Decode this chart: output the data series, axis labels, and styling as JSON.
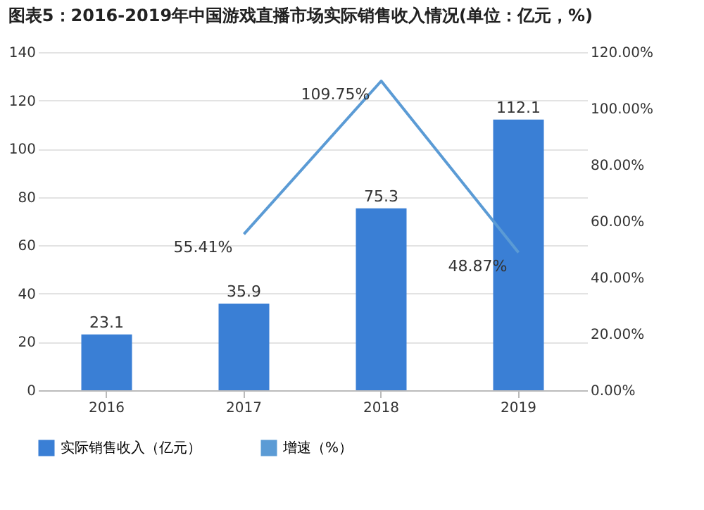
{
  "chart_data": {
    "type": "bar",
    "title": "图表5：2016-2019年中国游戏直播市场实际销售收入情况(单位：亿元，%)",
    "categories": [
      "2016",
      "2017",
      "2018",
      "2019"
    ],
    "series": [
      {
        "name": "实际销售收入（亿元）",
        "color": "#3a7fd5",
        "values": [
          23.1,
          35.9,
          75.3,
          112.1
        ],
        "value_labels": [
          "23.1",
          "35.9",
          "75.3",
          "112.1"
        ]
      },
      {
        "name": "增速（%）",
        "type": "line",
        "axis": "y2",
        "color": "#5b9bd5",
        "values": [
          null,
          55.41,
          109.75,
          48.87
        ],
        "value_labels": [
          null,
          "55.41%",
          "109.75%",
          "48.87%"
        ]
      }
    ],
    "ylim": [
      0,
      140
    ],
    "yticks": [
      0,
      20,
      40,
      60,
      80,
      100,
      120,
      140
    ],
    "y2lim": [
      0,
      120
    ],
    "y2ticks": [
      {
        "value": 0,
        "label": "0.00%"
      },
      {
        "value": 20,
        "label": "20.00%"
      },
      {
        "value": 40,
        "label": "40.00%"
      },
      {
        "value": 60,
        "label": "60.00%"
      },
      {
        "value": 80,
        "label": "80.00%"
      },
      {
        "value": 100,
        "label": "100.00%"
      },
      {
        "value": 120,
        "label": "120.00%"
      }
    ],
    "grid": "y",
    "legend": "bottom",
    "marker": "none",
    "line_style": "solid"
  }
}
